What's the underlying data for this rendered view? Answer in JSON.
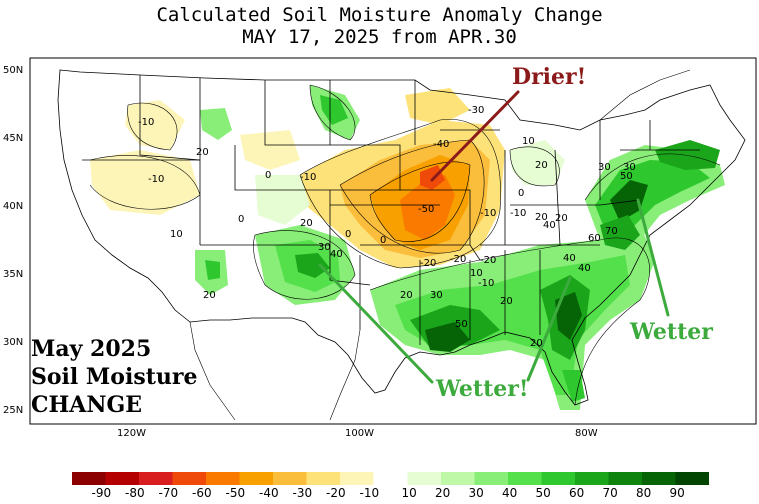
{
  "title": {
    "line1": "Calculated Soil Moisture Anomaly Change",
    "line2": "MAY 17, 2025 from APR.30"
  },
  "axes": {
    "lat_labels": [
      "50N",
      "45N",
      "40N",
      "35N",
      "30N",
      "25N"
    ],
    "lon_labels": [
      "120W",
      "100W",
      "80W"
    ]
  },
  "legend": {
    "colorbar": [
      {
        "label": "-90",
        "color": "#8b0000"
      },
      {
        "label": "-80",
        "color": "#b40000"
      },
      {
        "label": "-70",
        "color": "#d81e1e"
      },
      {
        "label": "-60",
        "color": "#f04a0a"
      },
      {
        "label": "-50",
        "color": "#fa7a00"
      },
      {
        "label": "-40",
        "color": "#f7a000"
      },
      {
        "label": "-30",
        "color": "#fbbe3c"
      },
      {
        "label": "-20",
        "color": "#fde27a"
      },
      {
        "label": "-10",
        "color": "#fdf5b8"
      },
      {
        "label": "10",
        "color": "#e6fcd2"
      },
      {
        "label": "20",
        "color": "#bff8a6"
      },
      {
        "label": "30",
        "color": "#88ee78"
      },
      {
        "label": "40",
        "color": "#54e04a"
      },
      {
        "label": "50",
        "color": "#2ec82e"
      },
      {
        "label": "60",
        "color": "#1aa51a"
      },
      {
        "label": "70",
        "color": "#0e830e"
      },
      {
        "label": "80",
        "color": "#066406"
      },
      {
        "label": "90",
        "color": "#024502"
      }
    ]
  },
  "contour_labels": [
    "-10",
    "20",
    "-10",
    "0",
    "0",
    "-10",
    "10",
    "20",
    "0",
    "0",
    "20",
    "30",
    "40",
    "20",
    "-30",
    "-40",
    "-50",
    "-10",
    "10",
    "0",
    "-10",
    "20",
    "20",
    "30",
    "50",
    "-20",
    "-20",
    "-20",
    "-10",
    "30",
    "40",
    "20",
    "50",
    "40",
    "60",
    "70",
    "10",
    "20",
    "20",
    "30",
    "40"
  ],
  "annotations": {
    "drier": "Drier!",
    "wetter_center": "Wetter!",
    "wetter_east": "Wetter",
    "stamp_line1": "May 2025",
    "stamp_line2": "Soil Moisture",
    "stamp_line3": "CHANGE"
  },
  "colors": {
    "drier_text": "#8b1a1a",
    "wetter_text": "#3daa3d",
    "map_background": "#ffffff"
  }
}
